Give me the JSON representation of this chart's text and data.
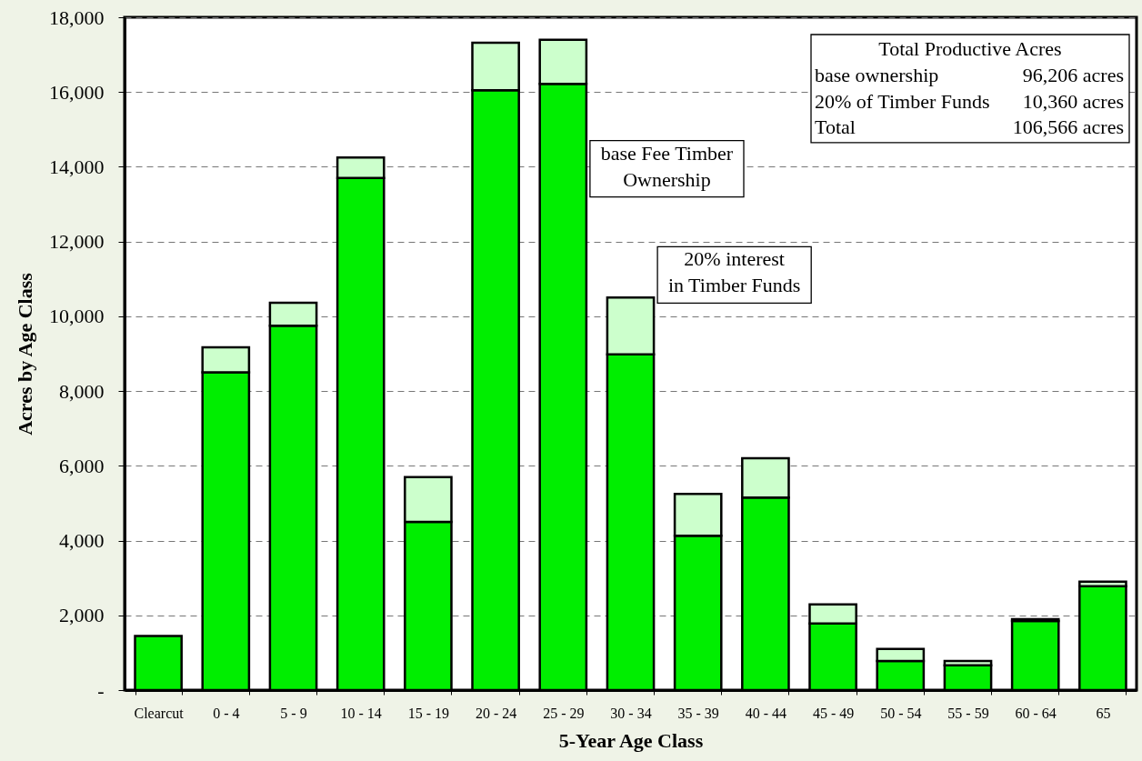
{
  "chart_data": {
    "type": "bar",
    "stacked": true,
    "xlabel": "5-Year Age Class",
    "ylabel": "Acres by Age Class",
    "categories": [
      "Clearcut",
      "0 - 4",
      "5 - 9",
      "10 - 14",
      "15 - 19",
      "20 - 24",
      "25 - 29",
      "30 - 34",
      "35 - 39",
      "40 - 44",
      "45 - 49",
      "50 - 54",
      "55 - 59",
      "60 - 64",
      "65"
    ],
    "series": [
      {
        "name": "base Fee Timber Ownership",
        "color": "#00ee00",
        "values": [
          1450,
          8500,
          9750,
          13700,
          4500,
          16050,
          16220,
          8980,
          4130,
          5150,
          1780,
          780,
          660,
          1850,
          2780
        ]
      },
      {
        "name": "20% interest in Timber Funds",
        "color": "#ccffcc",
        "values": [
          null,
          670,
          610,
          550,
          1200,
          1270,
          1180,
          1520,
          1120,
          1050,
          510,
          320,
          120,
          50,
          120
        ]
      }
    ],
    "ylim": [
      0,
      18000
    ],
    "yticks": [
      {
        "value": 0,
        "label": "-"
      },
      {
        "value": 2000,
        "label": "2,000"
      },
      {
        "value": 4000,
        "label": "4,000"
      },
      {
        "value": 6000,
        "label": "6,000"
      },
      {
        "value": 8000,
        "label": "8,000"
      },
      {
        "value": 10000,
        "label": "10,000"
      },
      {
        "value": 12000,
        "label": "12,000"
      },
      {
        "value": 14000,
        "label": "14,000"
      },
      {
        "value": 16000,
        "label": "16,000"
      },
      {
        "value": 18000,
        "label": "18,000"
      }
    ],
    "grid": "y",
    "annotations": [
      "Total Productive Acres",
      "base ownership",
      "96,206 acres",
      "20% of Timber Funds",
      "10,360 acres",
      "Total",
      "106,566 acres"
    ]
  }
}
